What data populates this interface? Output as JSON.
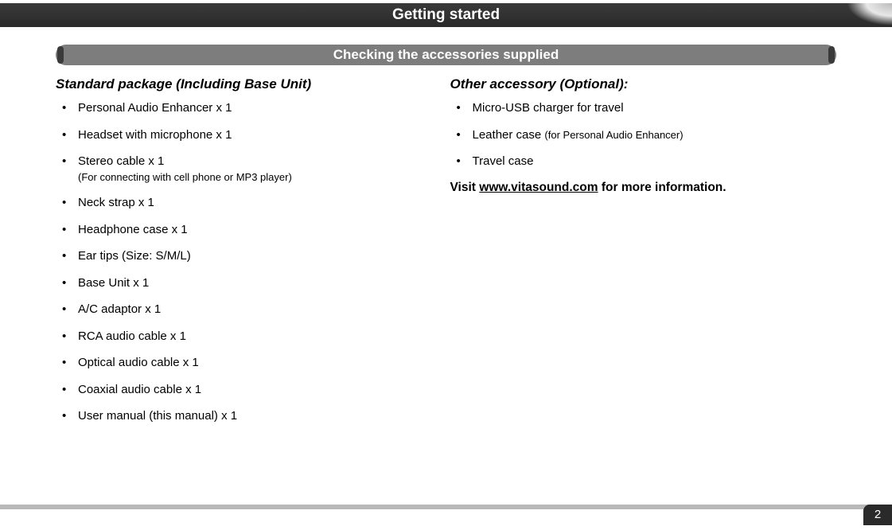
{
  "header": {
    "title": "Getting started"
  },
  "section": {
    "title": "Checking the accessories supplied"
  },
  "left": {
    "heading": "Standard package (Including Base Unit)",
    "items": [
      {
        "text": "Personal Audio Enhancer x 1"
      },
      {
        "text": "Headset with microphone x 1"
      },
      {
        "text": "Stereo cable x 1",
        "sub": "(For connecting with cell phone or MP3 player)"
      },
      {
        "text": "Neck strap x 1"
      },
      {
        "text": "Headphone case x 1"
      },
      {
        "text": "Ear tips (Size: S/M/L)"
      },
      {
        "text": "Base Unit x 1"
      },
      {
        "text": "A/C adaptor x 1"
      },
      {
        "text": "RCA audio cable x 1"
      },
      {
        "text": "Optical audio cable x 1"
      },
      {
        "text": "Coaxial audio cable  x 1"
      },
      {
        "text": "User manual (this manual) x 1"
      }
    ]
  },
  "right": {
    "heading": "Other accessory (Optional):",
    "items": [
      {
        "text": "Micro-USB charger for travel"
      },
      {
        "text": "Leather case ",
        "inline_sub": "(for Personal Audio Enhancer)"
      },
      {
        "text": "Travel case"
      }
    ],
    "visit_prefix": "Visit ",
    "visit_url": "www.vitasound.com",
    "visit_suffix": " for more information."
  },
  "page_number": "2"
}
